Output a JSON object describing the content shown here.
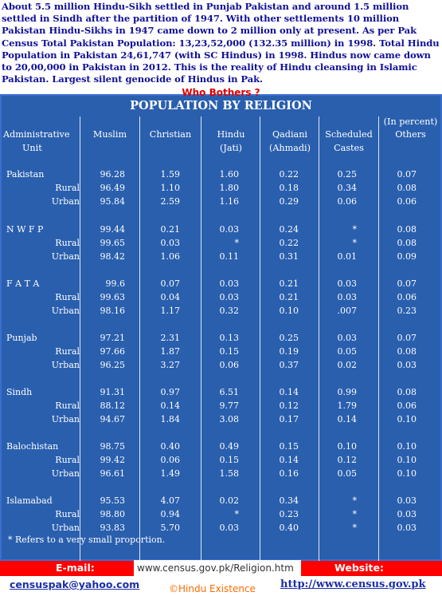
{
  "intro": "About 5.5 million Hindu-Sikh settled in Punjab Pakistan and around 1.5 million settled in Sindh after the partition of 1947. With other settlements 10 million Pakistan Hindu-Sikhs in 1947 came down to 2 million only at present. As per Pak Census Total Pakistan Population: 13,23,52,000 (132.35 million) in 1998. Total Hindu Population in Pakistan 24,61,747 (with SC Hindus) in 1998. Hindus now came down to 20,00,000 in Pakistan in 2012. This is the reality of Hindu cleansing in Islamic Pakistan. Largest silent genocide of Hindus in Pak.",
  "who_bothers": "Who Bothers ?",
  "table": {
    "title": "POPULATION BY RELIGION",
    "percent_note": "(In percent)",
    "headers": {
      "unit": [
        "Administrative",
        "Unit"
      ],
      "muslim": "Muslim",
      "christian": "Christian",
      "hindu": [
        "Hindu",
        "(Jati)"
      ],
      "qadiani": [
        "Qadiani",
        "(Ahmadi)"
      ],
      "scheduled": [
        "Scheduled",
        "Castes"
      ],
      "others": "Others"
    },
    "groups": [
      {
        "name": "Pakistan",
        "rows": [
          {
            "label": "",
            "muslim": "96.28",
            "christian": "1.59",
            "hindu": "1.60",
            "qadiani": "0.22",
            "sc": "0.25",
            "others": "0.07"
          },
          {
            "label": "Rural",
            "muslim": "96.49",
            "christian": "1.10",
            "hindu": "1.80",
            "qadiani": "0.18",
            "sc": "0.34",
            "others": "0.08"
          },
          {
            "label": "Urban",
            "muslim": "95.84",
            "christian": "2.59",
            "hindu": "1.16",
            "qadiani": "0.29",
            "sc": "0.06",
            "others": "0.06"
          }
        ]
      },
      {
        "name": "N W F P",
        "rows": [
          {
            "label": "",
            "muslim": "99.44",
            "christian": "0.21",
            "hindu": "0.03",
            "qadiani": "0.24",
            "sc": "*",
            "others": "0.08"
          },
          {
            "label": "Rural",
            "muslim": "99.65",
            "christian": "0.03",
            "hindu": "*",
            "qadiani": "0.22",
            "sc": "*",
            "others": "0.08"
          },
          {
            "label": "Urban",
            "muslim": "98.42",
            "christian": "1.06",
            "hindu": "0.11",
            "qadiani": "0.31",
            "sc": "0.01",
            "others": "0.09"
          }
        ]
      },
      {
        "name": "F A T A",
        "rows": [
          {
            "label": "",
            "muslim": "99.6",
            "christian": "0.07",
            "hindu": "0.03",
            "qadiani": "0.21",
            "sc": "0.03",
            "others": "0.07"
          },
          {
            "label": "Rural",
            "muslim": "99.63",
            "christian": "0.04",
            "hindu": "0.03",
            "qadiani": "0.21",
            "sc": "0.03",
            "others": "0.06"
          },
          {
            "label": "Urban",
            "muslim": "98.16",
            "christian": "1.17",
            "hindu": "0.32",
            "qadiani": "0.10",
            "sc": ".007",
            "others": "0.23"
          }
        ]
      },
      {
        "name": "Punjab",
        "rows": [
          {
            "label": "",
            "muslim": "97.21",
            "christian": "2.31",
            "hindu": "0.13",
            "qadiani": "0.25",
            "sc": "0.03",
            "others": "0.07"
          },
          {
            "label": "Rural",
            "muslim": "97.66",
            "christian": "1.87",
            "hindu": "0.15",
            "qadiani": "0.19",
            "sc": "0.05",
            "others": "0.08"
          },
          {
            "label": "Urban",
            "muslim": "96.25",
            "christian": "3.27",
            "hindu": "0.06",
            "qadiani": "0.37",
            "sc": "0.02",
            "others": "0.03"
          }
        ]
      },
      {
        "name": "Sindh",
        "rows": [
          {
            "label": "",
            "muslim": "91.31",
            "christian": "0.97",
            "hindu": "6.51",
            "qadiani": "0.14",
            "sc": "0.99",
            "others": "0.08"
          },
          {
            "label": "Rural",
            "muslim": "88.12",
            "christian": "0.14",
            "hindu": "9.77",
            "qadiani": "0.12",
            "sc": "1.79",
            "others": "0.06"
          },
          {
            "label": "Urban",
            "muslim": "94.67",
            "christian": "1.84",
            "hindu": "3.08",
            "qadiani": "0.17",
            "sc": "0.14",
            "others": "0.10"
          }
        ]
      },
      {
        "name": "Balochistan",
        "rows": [
          {
            "label": "",
            "muslim": "98.75",
            "christian": "0.40",
            "hindu": "0.49",
            "qadiani": "0.15",
            "sc": "0.10",
            "others": "0.10"
          },
          {
            "label": "Rural",
            "muslim": "99.42",
            "christian": "0.06",
            "hindu": "0.15",
            "qadiani": "0.14",
            "sc": "0.12",
            "others": "0.10"
          },
          {
            "label": "Urban",
            "muslim": "96.61",
            "christian": "1.49",
            "hindu": "1.58",
            "qadiani": "0.16",
            "sc": "0.05",
            "others": "0.10"
          }
        ]
      },
      {
        "name": "Islamabad",
        "rows": [
          {
            "label": "",
            "muslim": "95.53",
            "christian": "4.07",
            "hindu": "0.02",
            "qadiani": "0.34",
            "sc": "*",
            "others": "0.03"
          },
          {
            "label": "Rural",
            "muslim": "98.80",
            "christian": "0.94",
            "hindu": "*",
            "qadiani": "0.23",
            "sc": "*",
            "others": "0.03"
          },
          {
            "label": "Urban",
            "muslim": "93.83",
            "christian": "5.70",
            "hindu": "0.03",
            "qadiani": "0.40",
            "sc": "*",
            "others": "0.03"
          }
        ]
      }
    ],
    "footnote": "*   Refers to a very small proportion."
  },
  "footer": {
    "email_label": "E-mail:",
    "website_label": "Website:",
    "url_box": "www.census.gov.pk/Religion.htm",
    "email": "censuspak@yahoo.com",
    "credit": "©Hindu Existence",
    "website": "http://www.census.gov.pk"
  },
  "colors": {
    "panel": "#2a5fae",
    "intro_text": "#111199",
    "bar": "#ff0000",
    "credit": "#ff6a00"
  }
}
